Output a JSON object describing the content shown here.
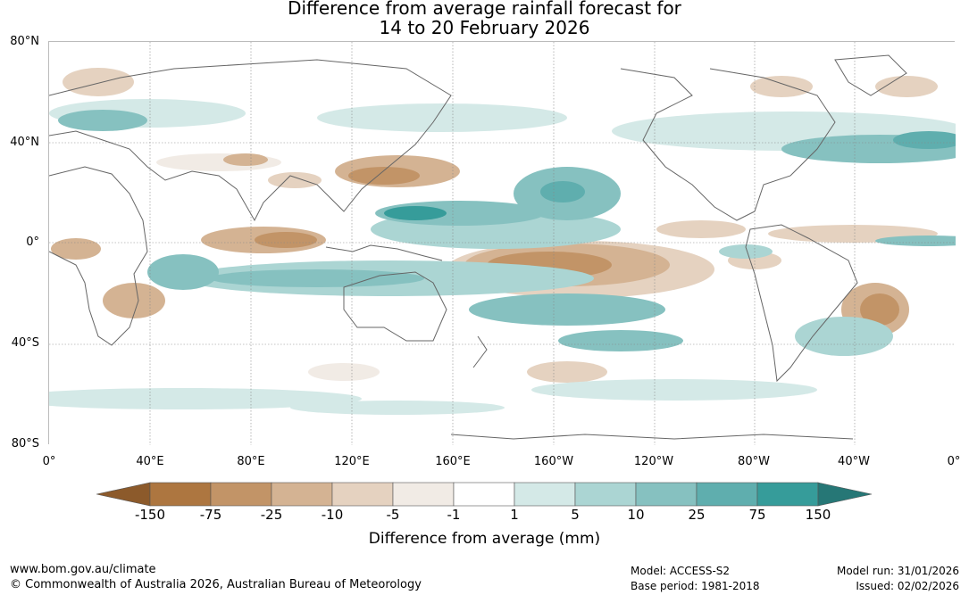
{
  "title": {
    "line1": "Difference from average rainfall forecast for",
    "line2": "14 to 20 February 2026"
  },
  "latitude_labels": [
    "80°N",
    "40°N",
    "0°",
    "40°S",
    "80°S"
  ],
  "longitude_labels": [
    "0°",
    "40°E",
    "80°E",
    "120°E",
    "160°E",
    "160°W",
    "120°W",
    "80°W",
    "40°W",
    "0°"
  ],
  "colorbar": {
    "ticks": [
      "-150",
      "-75",
      "-25",
      "-10",
      "-5",
      "-1",
      "1",
      "5",
      "10",
      "25",
      "75",
      "150"
    ],
    "colors": [
      "#8c5a2b",
      "#ad7640",
      "#c29467",
      "#d4b393",
      "#e5d2c0",
      "#f1ebe5",
      "#ffffff",
      "#d4e9e7",
      "#abd5d3",
      "#86c1c0",
      "#5faeae",
      "#369c9a",
      "#267776"
    ],
    "label": "Difference from average (mm)"
  },
  "footer": {
    "website": "www.bom.gov.au/climate",
    "copyright": "© Commonwealth of Australia 2026, Australian Bureau of Meteorology",
    "model": "Model: ACCESS-S2",
    "base_period": "Base period: 1981-2018",
    "model_run": "Model run: 31/01/2026",
    "issued": "Issued: 02/02/2026"
  }
}
